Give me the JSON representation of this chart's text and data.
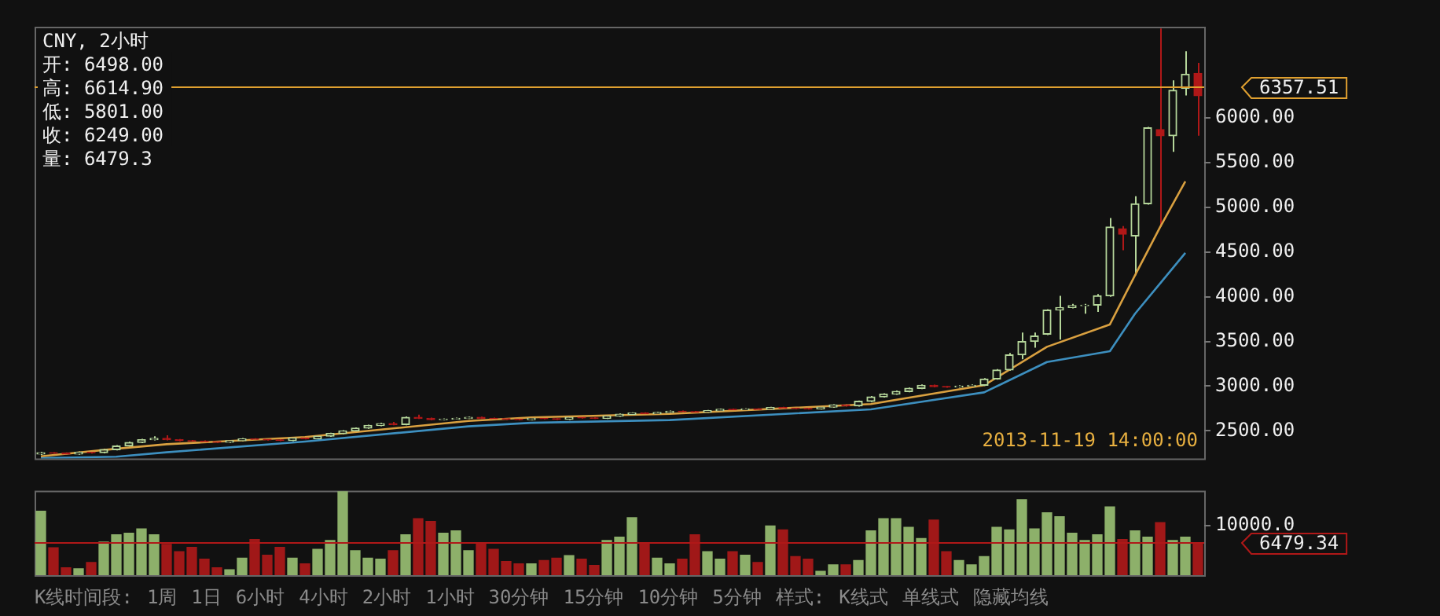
{
  "chart_data": [
    {
      "type": "candlestick",
      "title": "CNY, 2小时",
      "categories": [
        null,
        null,
        null,
        null,
        null,
        null,
        null,
        null,
        null,
        null,
        null,
        null,
        null,
        null,
        null,
        null,
        null,
        null,
        null,
        null,
        null,
        null,
        null,
        null,
        null,
        null,
        null,
        null,
        null,
        null,
        null,
        null,
        null,
        null,
        null,
        null,
        null,
        null,
        null,
        null,
        null,
        null,
        null,
        null,
        null,
        null,
        null,
        null,
        null,
        null,
        null,
        null,
        null,
        null,
        null,
        null,
        null,
        null,
        null,
        null,
        null,
        null,
        null,
        null,
        null,
        null,
        null,
        null,
        null,
        null,
        null,
        null,
        null,
        null,
        null,
        null,
        null,
        null,
        null,
        null,
        null,
        null,
        null,
        null,
        null,
        null,
        null,
        null,
        null,
        null,
        null,
        null,
        null
      ],
      "ohlc": [
        [
          2240,
          2265,
          2230,
          2255
        ],
        [
          2255,
          2262,
          2243,
          2250
        ],
        [
          2250,
          2258,
          2232,
          2240
        ],
        [
          2240,
          2270,
          2232,
          2260
        ],
        [
          2260,
          2268,
          2245,
          2255
        ],
        [
          2255,
          2300,
          2248,
          2290
        ],
        [
          2290,
          2340,
          2282,
          2330
        ],
        [
          2330,
          2380,
          2322,
          2370
        ],
        [
          2370,
          2410,
          2362,
          2400
        ],
        [
          2400,
          2440,
          2392,
          2415
        ],
        [
          2415,
          2450,
          2392,
          2400
        ],
        [
          2400,
          2408,
          2382,
          2390
        ],
        [
          2390,
          2398,
          2377,
          2385
        ],
        [
          2385,
          2392,
          2370,
          2378
        ],
        [
          2378,
          2386,
          2364,
          2372
        ],
        [
          2372,
          2398,
          2365,
          2390
        ],
        [
          2390,
          2420,
          2382,
          2410
        ],
        [
          2410,
          2418,
          2398,
          2405
        ],
        [
          2405,
          2412,
          2390,
          2398
        ],
        [
          2398,
          2406,
          2385,
          2392
        ],
        [
          2392,
          2428,
          2385,
          2420
        ],
        [
          2420,
          2428,
          2404,
          2412
        ],
        [
          2412,
          2448,
          2405,
          2440
        ],
        [
          2440,
          2478,
          2432,
          2470
        ],
        [
          2470,
          2508,
          2462,
          2500
        ],
        [
          2500,
          2538,
          2492,
          2530
        ],
        [
          2530,
          2568,
          2522,
          2560
        ],
        [
          2560,
          2590,
          2552,
          2580
        ],
        [
          2580,
          2600,
          2562,
          2570
        ],
        [
          2570,
          2660,
          2562,
          2650
        ],
        [
          2650,
          2680,
          2632,
          2640
        ],
        [
          2640,
          2648,
          2617,
          2625
        ],
        [
          2625,
          2640,
          2618,
          2632
        ],
        [
          2632,
          2648,
          2625,
          2640
        ],
        [
          2640,
          2658,
          2632,
          2650
        ],
        [
          2650,
          2658,
          2632,
          2640
        ],
        [
          2640,
          2648,
          2627,
          2635
        ],
        [
          2635,
          2642,
          2622,
          2630
        ],
        [
          2630,
          2638,
          2617,
          2625
        ],
        [
          2625,
          2648,
          2618,
          2640
        ],
        [
          2640,
          2648,
          2627,
          2635
        ],
        [
          2635,
          2642,
          2622,
          2630
        ],
        [
          2630,
          2658,
          2622,
          2650
        ],
        [
          2650,
          2658,
          2637,
          2645
        ],
        [
          2645,
          2652,
          2632,
          2640
        ],
        [
          2640,
          2673,
          2632,
          2665
        ],
        [
          2665,
          2693,
          2657,
          2685
        ],
        [
          2685,
          2708,
          2677,
          2700
        ],
        [
          2700,
          2708,
          2682,
          2690
        ],
        [
          2690,
          2713,
          2682,
          2705
        ],
        [
          2705,
          2728,
          2697,
          2720
        ],
        [
          2720,
          2728,
          2707,
          2715
        ],
        [
          2715,
          2722,
          2700,
          2708
        ],
        [
          2708,
          2733,
          2700,
          2725
        ],
        [
          2725,
          2748,
          2717,
          2740
        ],
        [
          2740,
          2748,
          2727,
          2735
        ],
        [
          2735,
          2753,
          2727,
          2745
        ],
        [
          2745,
          2752,
          2732,
          2740
        ],
        [
          2740,
          2768,
          2732,
          2760
        ],
        [
          2760,
          2768,
          2747,
          2755
        ],
        [
          2755,
          2762,
          2742,
          2750
        ],
        [
          2750,
          2758,
          2737,
          2745
        ],
        [
          2745,
          2773,
          2737,
          2765
        ],
        [
          2765,
          2798,
          2757,
          2790
        ],
        [
          2790,
          2798,
          2772,
          2780
        ],
        [
          2780,
          2840,
          2772,
          2830
        ],
        [
          2830,
          2890,
          2822,
          2880
        ],
        [
          2880,
          2920,
          2872,
          2910
        ],
        [
          2910,
          2950,
          2902,
          2940
        ],
        [
          2940,
          2985,
          2932,
          2975
        ],
        [
          2975,
          3020,
          2967,
          3010
        ],
        [
          3010,
          3018,
          2987,
          2995
        ],
        [
          2995,
          3002,
          2982,
          2990
        ],
        [
          2990,
          3010,
          2982,
          3000
        ],
        [
          3000,
          3020,
          2992,
          3010
        ],
        [
          3010,
          3090,
          3002,
          3080
        ],
        [
          3080,
          3190,
          3072,
          3180
        ],
        [
          3180,
          3370,
          3170,
          3350
        ],
        [
          3350,
          3600,
          3300,
          3500
        ],
        [
          3500,
          3600,
          3430,
          3560
        ],
        [
          3580,
          3860,
          3570,
          3850
        ],
        [
          3850,
          4010,
          3520,
          3880
        ],
        [
          3880,
          3920,
          3870,
          3900
        ],
        [
          3900,
          3920,
          3810,
          3905
        ],
        [
          3905,
          4030,
          3830,
          4010
        ],
        [
          4010,
          4880,
          4000,
          4780
        ],
        [
          4760,
          4790,
          4520,
          4700
        ],
        [
          4680,
          5125,
          4240,
          5040
        ],
        [
          5040,
          5900,
          5030,
          5890
        ],
        [
          5870,
          7000,
          4780,
          5800
        ],
        [
          5800,
          6420,
          5620,
          6310
        ],
        [
          6330,
          6745,
          6250,
          6490
        ],
        [
          6498,
          6614.9,
          5801,
          6249
        ]
      ],
      "series": [
        {
          "type": "line",
          "color": "#d9a040",
          "values": [
            2215,
            null,
            null,
            null,
            null,
            null,
            2300,
            null,
            null,
            null,
            2350,
            null,
            null,
            null,
            null,
            null,
            null,
            null,
            null,
            null,
            null,
            2430,
            null,
            null,
            null,
            null,
            null,
            null,
            null,
            null,
            null,
            null,
            null,
            null,
            2610,
            null,
            null,
            null,
            null,
            2650,
            null,
            null,
            null,
            null,
            null,
            null,
            null,
            null,
            null,
            null,
            2690,
            null,
            null,
            null,
            null,
            null,
            null,
            null,
            null,
            null,
            null,
            null,
            null,
            null,
            null,
            null,
            2800,
            null,
            null,
            null,
            null,
            null,
            null,
            null,
            null,
            3010,
            null,
            null,
            null,
            null,
            3440,
            null,
            null,
            null,
            null,
            3690,
            null,
            4240,
            null,
            4780,
            null,
            5290,
            null
          ]
        },
        {
          "type": "line",
          "color": "#3d8fbf",
          "values": [
            2195,
            null,
            null,
            null,
            null,
            null,
            2210,
            null,
            null,
            null,
            2260,
            null,
            null,
            null,
            null,
            null,
            null,
            null,
            null,
            null,
            null,
            2380,
            null,
            null,
            null,
            null,
            null,
            null,
            null,
            null,
            null,
            null,
            null,
            null,
            2550,
            null,
            null,
            null,
            null,
            2590,
            null,
            null,
            null,
            null,
            null,
            null,
            null,
            null,
            null,
            null,
            2620,
            null,
            null,
            null,
            null,
            null,
            null,
            null,
            null,
            null,
            null,
            null,
            null,
            null,
            null,
            null,
            2740,
            null,
            null,
            null,
            null,
            null,
            null,
            null,
            null,
            2930,
            null,
            null,
            null,
            null,
            3270,
            null,
            null,
            null,
            null,
            3390,
            null,
            3810,
            null,
            4150,
            null,
            4490,
            null
          ]
        }
      ],
      "ylim": [
        2190,
        7020
      ],
      "yticks": [
        {
          "value": 2500,
          "label": "2500.00"
        },
        {
          "value": 3000,
          "label": "3000.00"
        },
        {
          "value": 3500,
          "label": "3500.00"
        },
        {
          "value": 4000,
          "label": "4000.00"
        },
        {
          "value": 4500,
          "label": "4500.00"
        },
        {
          "value": 5000,
          "label": "5000.00"
        },
        {
          "value": 5500,
          "label": "5500.00"
        },
        {
          "value": 6000,
          "label": "6000.00"
        }
      ],
      "ref_lines": [
        {
          "axis": "y",
          "value": 6357.51,
          "label": "6357.51",
          "color": "#e0a030"
        }
      ],
      "annotations": [
        "开: 6498.00",
        "高: 6614.90",
        "低: 5801.00",
        "收: 6249.00",
        "量: 6479.3",
        "2013-11-19 14:00:00"
      ],
      "tick_labels": "y",
      "marker": "none",
      "legend": false,
      "grid": false
    },
    {
      "type": "bar",
      "categories": [
        null,
        null,
        null,
        null,
        null,
        null,
        null,
        null,
        null,
        null,
        null,
        null,
        null,
        null,
        null,
        null,
        null,
        null,
        null,
        null,
        null,
        null,
        null,
        null,
        null,
        null,
        null,
        null,
        null,
        null,
        null,
        null,
        null,
        null,
        null,
        null,
        null,
        null,
        null,
        null,
        null,
        null,
        null,
        null,
        null,
        null,
        null,
        null,
        null,
        null,
        null,
        null,
        null,
        null,
        null,
        null,
        null,
        null,
        null,
        null,
        null,
        null,
        null,
        null,
        null,
        null,
        null,
        null,
        null,
        null,
        null,
        null,
        null,
        null,
        null,
        null,
        null,
        null,
        null,
        null,
        null,
        null,
        null,
        null,
        null,
        null,
        null,
        null,
        null,
        null,
        null,
        null,
        null
      ],
      "values": [
        12840,
        5490,
        1470,
        1270,
        2550,
        6660,
        8130,
        8430,
        9310,
        8130,
        6170,
        4700,
        5590,
        3230,
        1470,
        1080,
        3430,
        7150,
        4020,
        5590,
        3430,
        2250,
        5190,
        6960,
        16760,
        4900,
        3430,
        3230,
        4900,
        8130,
        11370,
        10780,
        8430,
        8920,
        4900,
        6370,
        5190,
        2740,
        2250,
        2250,
        2940,
        3430,
        3920,
        3230,
        1960,
        6960,
        7640,
        11560,
        6370,
        3430,
        2250,
        3230,
        8130,
        4700,
        3230,
        4700,
        4020,
        2550,
        9900,
        9110,
        3720,
        3230,
        780,
        2060,
        2060,
        2940,
        8920,
        11370,
        11370,
        9600,
        7350,
        11070,
        4700,
        2940,
        2060,
        3720,
        9600,
        9110,
        15190,
        9310,
        12540,
        11760,
        8430,
        6960,
        8130,
        13720,
        7150,
        8920,
        7640,
        10580,
        6960,
        7640,
        6479.3
      ],
      "colors": [
        "#8db06a",
        "#a01818",
        "#a01818",
        "#8db06a",
        "#a01818",
        "#8db06a",
        "#8db06a",
        "#8db06a",
        "#8db06a",
        "#8db06a",
        "#a01818",
        "#a01818",
        "#a01818",
        "#a01818",
        "#a01818",
        "#8db06a",
        "#8db06a",
        "#a01818",
        "#a01818",
        "#a01818",
        "#8db06a",
        "#a01818",
        "#8db06a",
        "#8db06a",
        "#8db06a",
        "#8db06a",
        "#8db06a",
        "#8db06a",
        "#a01818",
        "#8db06a",
        "#a01818",
        "#a01818",
        "#8db06a",
        "#8db06a",
        "#8db06a",
        "#a01818",
        "#a01818",
        "#a01818",
        "#a01818",
        "#8db06a",
        "#a01818",
        "#a01818",
        "#8db06a",
        "#a01818",
        "#a01818",
        "#8db06a",
        "#8db06a",
        "#8db06a",
        "#a01818",
        "#8db06a",
        "#8db06a",
        "#a01818",
        "#a01818",
        "#8db06a",
        "#8db06a",
        "#a01818",
        "#8db06a",
        "#a01818",
        "#8db06a",
        "#a01818",
        "#a01818",
        "#a01818",
        "#8db06a",
        "#8db06a",
        "#a01818",
        "#8db06a",
        "#8db06a",
        "#8db06a",
        "#8db06a",
        "#8db06a",
        "#8db06a",
        "#a01818",
        "#a01818",
        "#8db06a",
        "#8db06a",
        "#8db06a",
        "#8db06a",
        "#8db06a",
        "#8db06a",
        "#8db06a",
        "#8db06a",
        "#8db06a",
        "#8db06a",
        "#8db06a",
        "#8db06a",
        "#8db06a",
        "#a01818",
        "#8db06a",
        "#8db06a",
        "#a01818",
        "#8db06a",
        "#8db06a",
        "#a01818"
      ],
      "ylim": [
        0,
        17000
      ],
      "yticks": [
        {
          "value": 10000,
          "label": "10000.0"
        }
      ],
      "ref_lines": [
        {
          "axis": "y",
          "value": 6479.34,
          "label": "6479.34",
          "color": "#b01818"
        }
      ],
      "annotations": [
        "K线时间段:",
        "1周",
        "1日",
        "6小时",
        "4小时",
        "2小时",
        "1小时",
        "30分钟",
        "15分钟",
        "10分钟",
        "5分钟",
        "样式:",
        "K线式",
        "单线式",
        "隐藏均线"
      ],
      "tick_labels": "y",
      "legend": false,
      "grid": false
    }
  ]
}
